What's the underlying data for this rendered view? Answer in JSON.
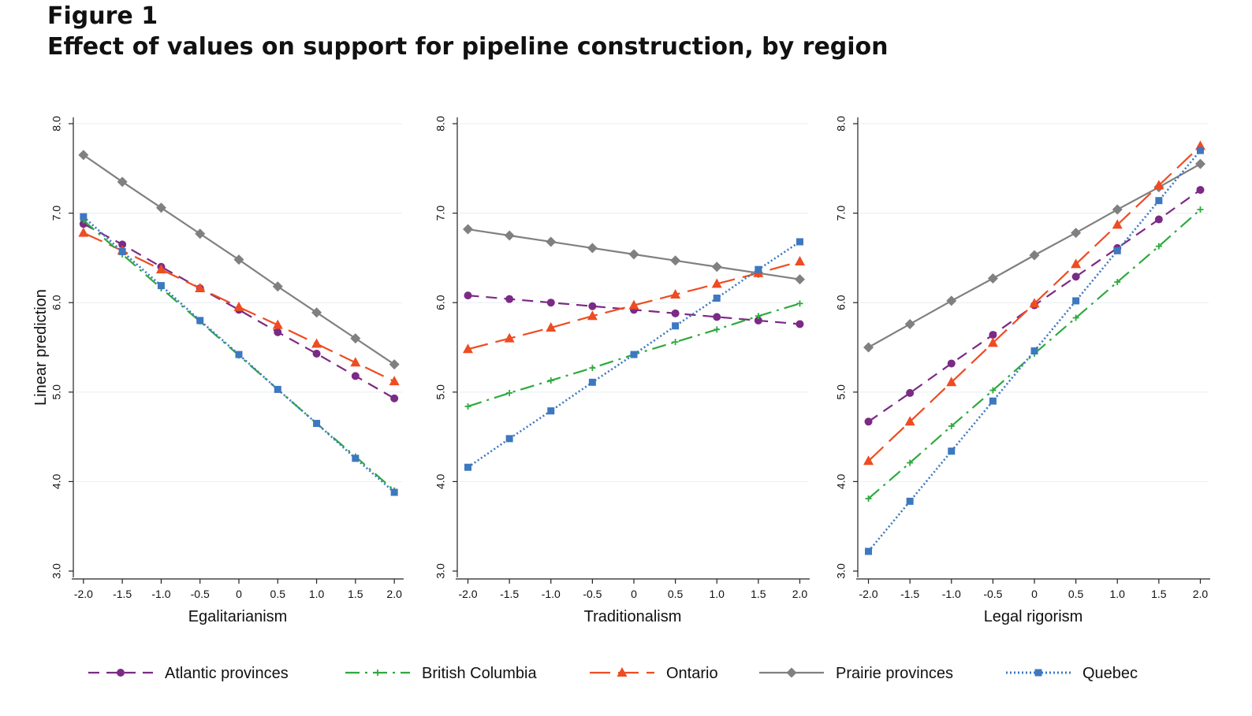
{
  "figure": {
    "label": "Figure 1",
    "title": "Effect of values on support for pipeline construction, by region"
  },
  "chart_data": [
    {
      "type": "line",
      "xlabel": "Egalitarianism",
      "ylabel": "Linear prediction",
      "x": [
        -2.0,
        -1.5,
        -1.0,
        -0.5,
        0,
        0.5,
        1.0,
        1.5,
        2.0
      ],
      "x_tick_labels": [
        "-2.0",
        "-1.5",
        "-1.0",
        "-0.5",
        "0",
        "0.5",
        "1.0",
        "1.5",
        "2.0"
      ],
      "ylim": [
        3.0,
        8.0
      ],
      "y_ticks": [
        3.0,
        4.0,
        5.0,
        6.0,
        7.0,
        8.0
      ],
      "y_tick_labels": [
        "3.0",
        "4.0",
        "5.0",
        "6.0",
        "7.0",
        "8.0"
      ],
      "grid": true,
      "series": [
        {
          "name": "Atlantic provinces",
          "values": [
            6.88,
            6.65,
            6.4,
            6.16,
            5.92,
            5.67,
            5.43,
            5.18,
            4.93
          ]
        },
        {
          "name": "British Columbia",
          "values": [
            6.92,
            6.54,
            6.16,
            5.79,
            5.41,
            5.03,
            4.65,
            4.28,
            3.9
          ]
        },
        {
          "name": "Ontario",
          "values": [
            6.78,
            6.58,
            6.37,
            6.16,
            5.95,
            5.75,
            5.54,
            5.33,
            5.12
          ]
        },
        {
          "name": "Prairie provinces",
          "values": [
            7.65,
            7.35,
            7.06,
            6.77,
            6.48,
            6.18,
            5.89,
            5.6,
            5.31
          ]
        },
        {
          "name": "Quebec",
          "values": [
            6.96,
            6.57,
            6.19,
            5.8,
            5.42,
            5.03,
            4.65,
            4.26,
            3.88
          ]
        }
      ]
    },
    {
      "type": "line",
      "xlabel": "Traditionalism",
      "x": [
        -2.0,
        -1.5,
        -1.0,
        -0.5,
        0,
        0.5,
        1.0,
        1.5,
        2.0
      ],
      "x_tick_labels": [
        "-2.0",
        "-1.5",
        "-1.0",
        "-0.5",
        "0",
        "0.5",
        "1.0",
        "1.5",
        "2.0"
      ],
      "ylim": [
        3.0,
        8.0
      ],
      "y_ticks": [
        3.0,
        4.0,
        5.0,
        6.0,
        7.0,
        8.0
      ],
      "y_tick_labels": [
        "3.0",
        "4.0",
        "5.0",
        "6.0",
        "7.0",
        "8.0"
      ],
      "grid": true,
      "series": [
        {
          "name": "Atlantic provinces",
          "values": [
            6.08,
            6.04,
            6.0,
            5.96,
            5.92,
            5.88,
            5.84,
            5.8,
            5.76
          ]
        },
        {
          "name": "British Columbia",
          "values": [
            4.84,
            4.99,
            5.13,
            5.27,
            5.42,
            5.56,
            5.7,
            5.85,
            5.99
          ]
        },
        {
          "name": "Ontario",
          "values": [
            5.48,
            5.6,
            5.72,
            5.85,
            5.97,
            6.09,
            6.21,
            6.33,
            6.46
          ]
        },
        {
          "name": "Prairie provinces",
          "values": [
            6.82,
            6.75,
            6.68,
            6.61,
            6.54,
            6.47,
            6.4,
            6.33,
            6.26
          ]
        },
        {
          "name": "Quebec",
          "values": [
            4.16,
            4.48,
            4.79,
            5.11,
            5.42,
            5.74,
            6.05,
            6.37,
            6.68
          ]
        }
      ]
    },
    {
      "type": "line",
      "xlabel": "Legal rigorism",
      "x": [
        -2.0,
        -1.5,
        -1.0,
        -0.5,
        0,
        0.5,
        1.0,
        1.5,
        2.0
      ],
      "x_tick_labels": [
        "-2.0",
        "-1.5",
        "-1.0",
        "-0.5",
        "0",
        "0.5",
        "1.0",
        "1.5",
        "2.0"
      ],
      "ylim": [
        3.0,
        8.0
      ],
      "y_ticks": [
        3.0,
        4.0,
        5.0,
        6.0,
        7.0,
        8.0
      ],
      "y_tick_labels": [
        "3.0",
        "4.0",
        "5.0",
        "6.0",
        "7.0",
        "8.0"
      ],
      "grid": true,
      "series": [
        {
          "name": "Atlantic provinces",
          "values": [
            4.67,
            4.99,
            5.32,
            5.64,
            5.97,
            6.29,
            6.61,
            6.93,
            7.26
          ]
        },
        {
          "name": "British Columbia",
          "values": [
            3.81,
            4.21,
            4.62,
            5.02,
            5.43,
            5.83,
            6.23,
            6.63,
            7.04
          ]
        },
        {
          "name": "Ontario",
          "values": [
            4.23,
            4.67,
            5.11,
            5.55,
            5.99,
            6.43,
            6.87,
            7.31,
            7.75
          ]
        },
        {
          "name": "Prairie provinces",
          "values": [
            5.5,
            5.76,
            6.02,
            6.27,
            6.53,
            6.78,
            7.04,
            7.29,
            7.55
          ]
        },
        {
          "name": "Quebec",
          "values": [
            3.22,
            3.78,
            4.34,
            4.9,
            5.46,
            6.02,
            6.58,
            7.14,
            7.7
          ]
        }
      ]
    }
  ],
  "legend": {
    "position": "bottom",
    "items": [
      {
        "name": "Atlantic provinces",
        "color": "#7b2a85",
        "marker": "circle",
        "dash": "dash"
      },
      {
        "name": "British Columbia",
        "color": "#2eaa3e",
        "marker": "plus",
        "dash": "dashdot"
      },
      {
        "name": "Ontario",
        "color": "#ee4c22",
        "marker": "triangle",
        "dash": "longdash"
      },
      {
        "name": "Prairie provinces",
        "color": "#808080",
        "marker": "diamond",
        "dash": "solid"
      },
      {
        "name": "Quebec",
        "color": "#3d78c0",
        "marker": "square",
        "dash": "dot"
      }
    ]
  }
}
